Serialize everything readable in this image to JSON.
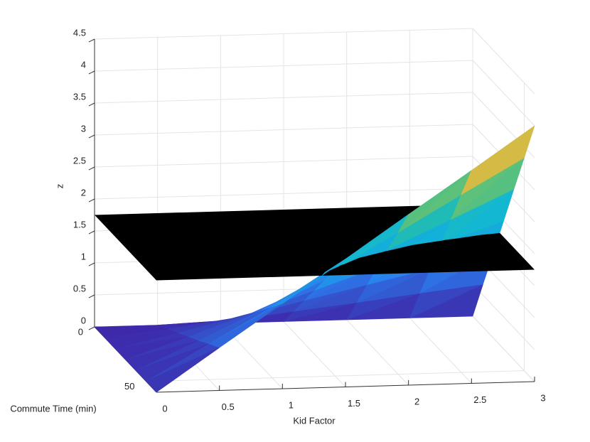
{
  "chart_data": {
    "type": "surface3d",
    "xlabel": "Kid Factor",
    "ylabel": "Commute Time (min)",
    "zlabel": "z",
    "xlim": [
      0,
      3
    ],
    "ylim": [
      0,
      60
    ],
    "zlim": [
      0,
      4.5
    ],
    "xticks": [
      0,
      0.5,
      1,
      1.5,
      2,
      2.5,
      3
    ],
    "yticks": [
      0,
      50
    ],
    "zticks": [
      0,
      0.5,
      1,
      1.5,
      2,
      2.5,
      3,
      3.5,
      4,
      4.5
    ],
    "grid": true,
    "surface": {
      "colormap": "parula",
      "x": [
        0,
        0.5,
        1,
        1.5,
        2,
        2.5,
        3
      ],
      "y": [
        0,
        10,
        20,
        30,
        40,
        50,
        60
      ],
      "z": [
        [
          0,
          0,
          0,
          0,
          0,
          0,
          0
        ],
        [
          0,
          0.11,
          0.22,
          0.33,
          0.44,
          0.56,
          0.67
        ],
        [
          0,
          0.22,
          0.44,
          0.67,
          0.89,
          1.11,
          1.33
        ],
        [
          0,
          0.33,
          0.67,
          1,
          1.33,
          1.67,
          2
        ],
        [
          0,
          0.44,
          0.89,
          1.33,
          1.78,
          2.22,
          2.67
        ],
        [
          0,
          0.56,
          1.11,
          1.67,
          2.22,
          2.78,
          3.33
        ],
        [
          0,
          0.67,
          1.33,
          2,
          2.67,
          3.33,
          4
        ]
      ]
    },
    "plane": {
      "z": 1.75,
      "color": "#000000"
    }
  }
}
